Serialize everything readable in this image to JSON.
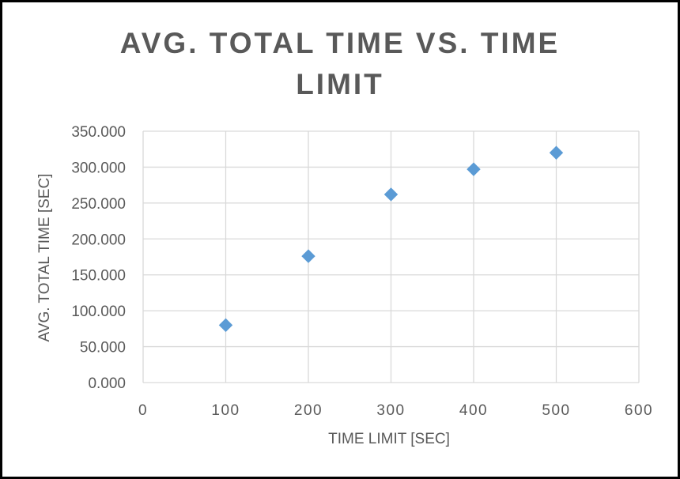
{
  "chart_data": {
    "type": "scatter",
    "title_lines": [
      "AVG. TOTAL TIME VS. TIME",
      "LIMIT"
    ],
    "xlabel": "TIME LIMIT [SEC]",
    "ylabel": "AVG. TOTAL TIME [SEC]",
    "xlim": [
      0,
      600
    ],
    "ylim": [
      0,
      350
    ],
    "x_ticks": [
      0,
      100,
      200,
      300,
      400,
      500,
      600
    ],
    "y_ticks": [
      0,
      50,
      100,
      150,
      200,
      250,
      300,
      350
    ],
    "x_tick_labels": [
      "0",
      "100",
      "200",
      "300",
      "400",
      "500",
      "600"
    ],
    "y_tick_labels": [
      "0.000",
      "50.000",
      "100.000",
      "150.000",
      "200.000",
      "250.000",
      "300.000",
      "350.000"
    ],
    "grid": true,
    "marker": "diamond",
    "marker_color": "#5B9BD5",
    "grid_color": "#D9D9D9",
    "series": [
      {
        "x": [
          100,
          200,
          300,
          400,
          500
        ],
        "y": [
          80,
          176,
          262,
          297,
          320
        ]
      }
    ]
  }
}
